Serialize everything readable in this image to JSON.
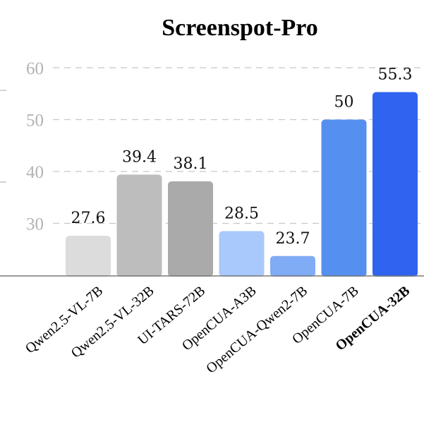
{
  "chart_data": {
    "type": "bar",
    "title": "Screenspot-Pro",
    "xlabel": "",
    "ylabel": "",
    "ylim": [
      20,
      60
    ],
    "yticks": [
      30,
      40,
      50,
      60
    ],
    "grid": true,
    "categories": [
      "Qwen2.5-VL-7B",
      "Qwen2.5-VL-32B",
      "UI-TARS-72B",
      "OpenCUA-A3B",
      "OpenCUA-Qwen2-7B",
      "OpenCUA-7B",
      "OpenCUA-32B"
    ],
    "values": [
      27.6,
      39.4,
      38.1,
      28.5,
      23.7,
      50,
      55.3
    ],
    "value_labels": [
      "27.6",
      "39.4",
      "38.1",
      "28.5",
      "23.7",
      "50",
      "55.3"
    ],
    "colors": [
      "#dcdcdc",
      "#bdbdbd",
      "#aaaaaa",
      "#a9c8fb",
      "#80abf5",
      "#5590f0",
      "#2f63f0"
    ],
    "highlight_category": "OpenCUA-32B"
  }
}
